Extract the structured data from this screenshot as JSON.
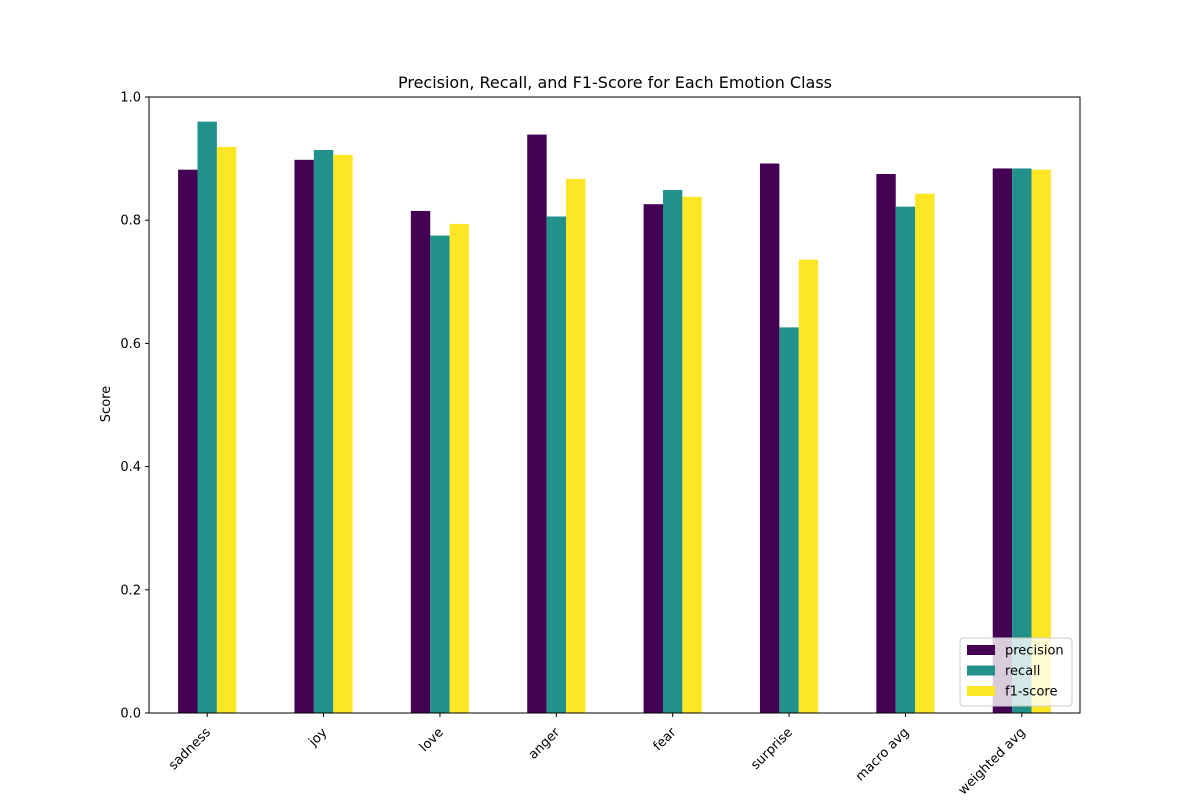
{
  "chart_data": {
    "type": "bar",
    "title": "Precision, Recall, and F1-Score for Each Emotion Class",
    "xlabel": "",
    "ylabel": "Score",
    "ylim": [
      0,
      1.0
    ],
    "yticks": [
      "0.0",
      "0.2",
      "0.4",
      "0.6",
      "0.8",
      "1.0"
    ],
    "categories": [
      "sadness",
      "joy",
      "love",
      "anger",
      "fear",
      "surprise",
      "macro avg",
      "weighted avg"
    ],
    "series": [
      {
        "name": "precision",
        "color": "#440154",
        "values": [
          0.882,
          0.898,
          0.815,
          0.939,
          0.826,
          0.892,
          0.875,
          0.884
        ]
      },
      {
        "name": "recall",
        "color": "#21918c",
        "values": [
          0.96,
          0.914,
          0.775,
          0.806,
          0.849,
          0.626,
          0.822,
          0.884
        ]
      },
      {
        "name": "f1-score",
        "color": "#fde725",
        "values": [
          0.919,
          0.906,
          0.794,
          0.867,
          0.838,
          0.736,
          0.843,
          0.882
        ]
      }
    ],
    "grid": false,
    "legend_position": "lower-right"
  }
}
